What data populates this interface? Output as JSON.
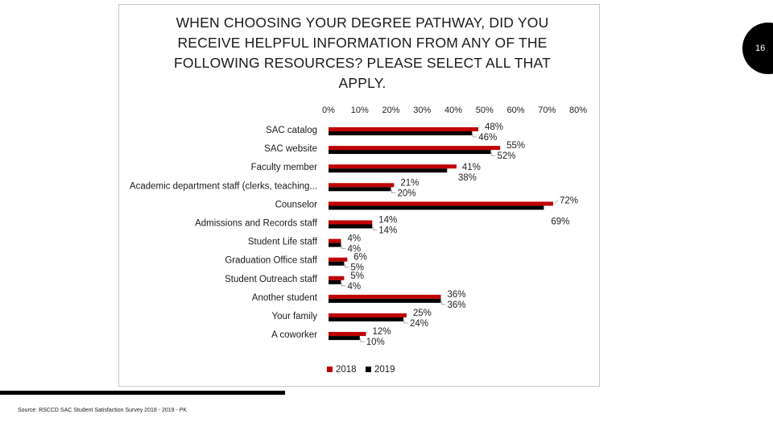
{
  "slide": {
    "number": "16"
  },
  "source_note": "Source: RSCCD SAC Student Satisfaction Survey 2018 - 2019 - PK",
  "chart_data": {
    "type": "bar",
    "orientation": "horizontal",
    "title": "WHEN CHOOSING YOUR DEGREE PATHWAY, DID YOU RECEIVE HELPFUL INFORMATION FROM ANY OF THE FOLLOWING RESOURCES? PLEASE SELECT ALL THAT APPLY.",
    "categories": [
      "SAC catalog",
      "SAC website",
      "Faculty member",
      "Academic department staff (clerks, teaching...",
      "Counselor",
      "Admissions and Records staff",
      "Student Life staff",
      "Graduation Office staff",
      "Student Outreach staff",
      "Another student",
      "Your family",
      "A coworker"
    ],
    "series": [
      {
        "name": "2018",
        "color": "#c00000",
        "values": [
          48,
          55,
          41,
          21,
          72,
          14,
          4,
          6,
          5,
          36,
          25,
          12
        ]
      },
      {
        "name": "2019",
        "color": "#000000",
        "values": [
          46,
          52,
          38,
          20,
          69,
          14,
          4,
          5,
          4,
          36,
          24,
          10
        ]
      }
    ],
    "data_labels": {
      "2018": [
        "48%",
        "55%",
        "41%",
        "21%",
        "72%",
        "14%",
        "4%",
        "6%",
        "5%",
        "36%",
        "25%",
        "12%"
      ],
      "2019": [
        "46%",
        "52%",
        "38%",
        "20%",
        "69%",
        "14%",
        "4%",
        "5%",
        "4%",
        "36%",
        "24%",
        "10%"
      ]
    },
    "x_ticks": [
      "0%",
      "10%",
      "20%",
      "30%",
      "40%",
      "50%",
      "60%",
      "70%",
      "80%"
    ],
    "xlim": [
      0,
      80
    ],
    "x_axis_position": "top",
    "gridlines": false,
    "legend_position": "bottom",
    "legend_labels": [
      "2018",
      "2019"
    ]
  }
}
